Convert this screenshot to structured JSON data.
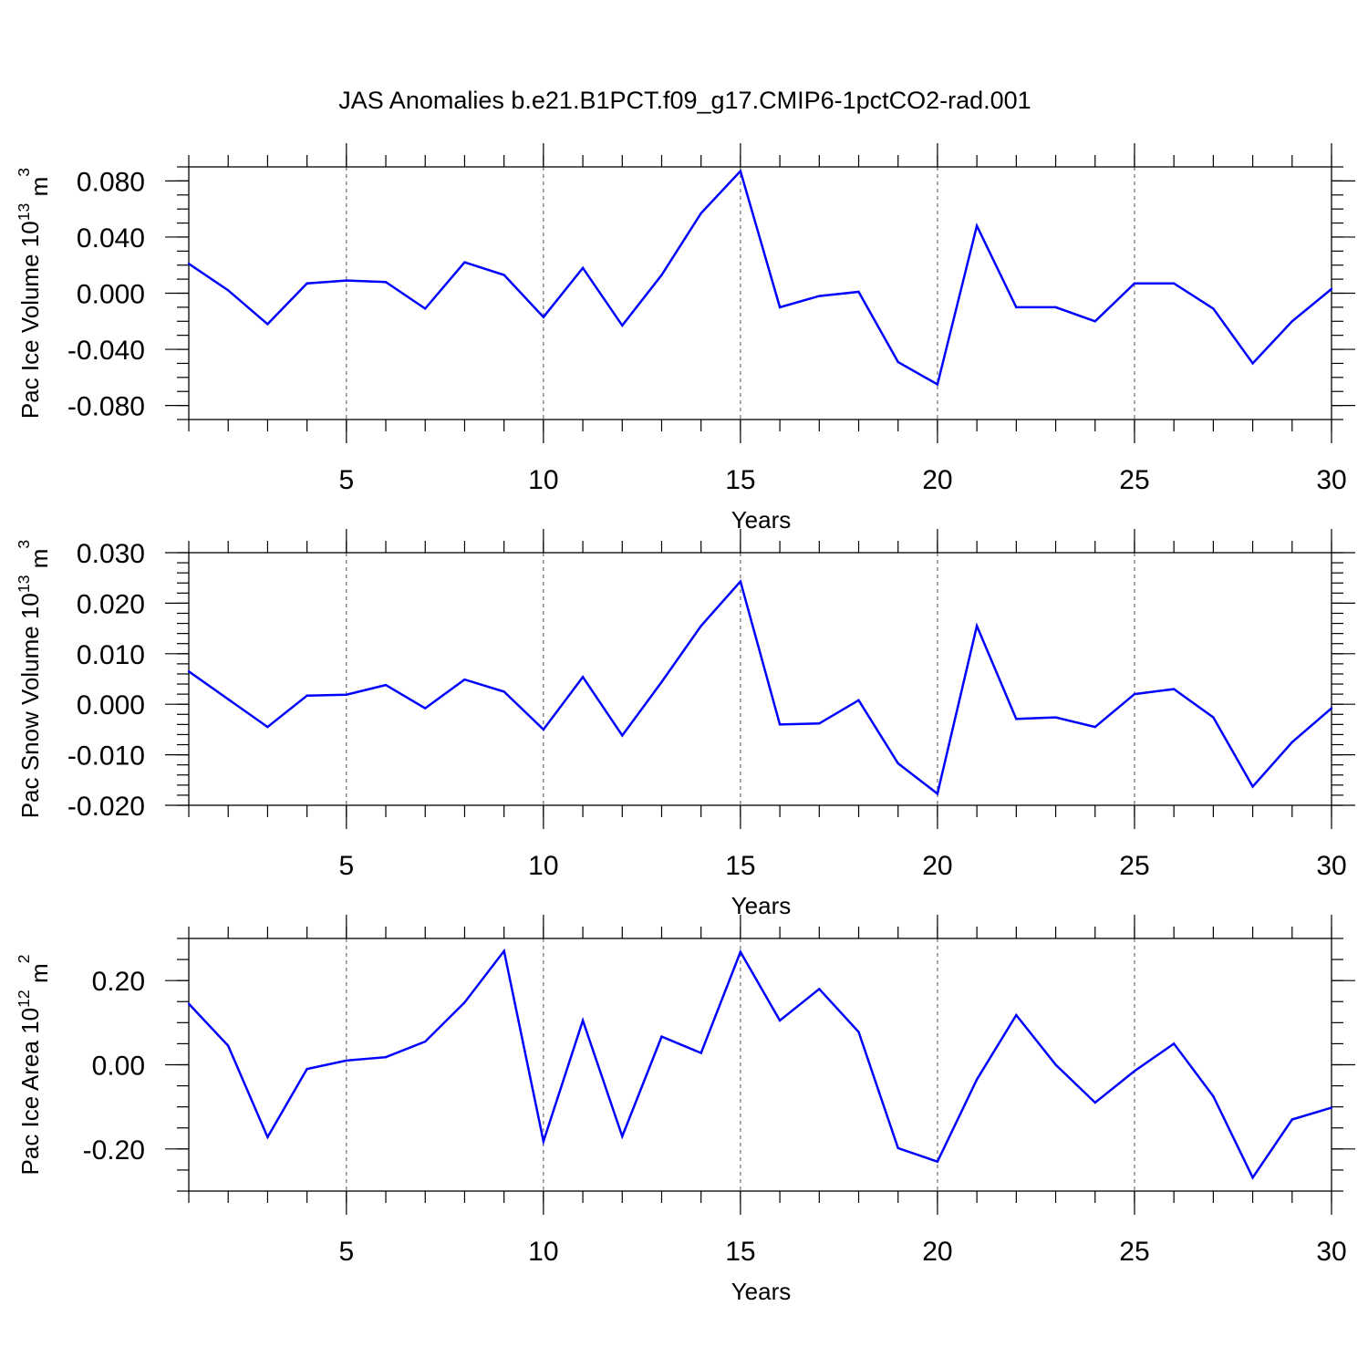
{
  "figure_title": "JAS Anomalies b.e21.B1PCT.f09_g17.CMIP6-1pctCO2-rad.001",
  "colors": {
    "line": "#0000ff",
    "frame": "#000000",
    "grid": "#555555"
  },
  "chart_data": [
    {
      "type": "line",
      "ylabel": "Pac Ice Volume 10",
      "ylabel_exp": "13",
      "ylabel_unit": " m",
      "ylabel_unit_exp": "3",
      "xlabel": "Years",
      "xlim": [
        1,
        30
      ],
      "ylim": [
        -0.09,
        0.09
      ],
      "x_ticks": [
        5,
        10,
        15,
        20,
        25,
        30
      ],
      "x_tick_labels": [
        "5",
        "10",
        "15",
        "20",
        "25",
        "30"
      ],
      "x_minor_ticks": [
        1,
        2,
        3,
        4,
        5,
        6,
        7,
        8,
        9,
        10,
        11,
        12,
        13,
        14,
        15,
        16,
        17,
        18,
        19,
        20,
        21,
        22,
        23,
        24,
        25,
        26,
        27,
        28,
        29,
        30
      ],
      "x_grid": [
        5,
        10,
        15,
        20,
        25
      ],
      "y_ticks": [
        -0.08,
        -0.04,
        0.0,
        0.04,
        0.08
      ],
      "y_tick_labels": [
        "-0.080",
        "-0.040",
        "0.000",
        "0.040",
        "0.080"
      ],
      "y_minor_ticks": [
        -0.09,
        -0.08,
        -0.07,
        -0.06,
        -0.05,
        -0.04,
        -0.03,
        -0.02,
        -0.01,
        0.0,
        0.01,
        0.02,
        0.03,
        0.04,
        0.05,
        0.06,
        0.07,
        0.08,
        0.09
      ],
      "x": [
        1,
        2,
        3,
        4,
        5,
        6,
        7,
        8,
        9,
        10,
        11,
        12,
        13,
        14,
        15,
        16,
        17,
        18,
        19,
        20,
        21,
        22,
        23,
        24,
        25,
        26,
        27,
        28,
        29,
        30
      ],
      "values": [
        0.021,
        0.002,
        -0.022,
        0.007,
        0.009,
        0.008,
        -0.011,
        0.022,
        0.013,
        -0.017,
        0.018,
        -0.023,
        0.013,
        0.057,
        0.087,
        -0.01,
        -0.002,
        0.001,
        -0.049,
        -0.065,
        0.048,
        -0.01,
        -0.01,
        -0.02,
        0.007,
        0.007,
        -0.011,
        -0.05,
        -0.02,
        0.003
      ]
    },
    {
      "type": "line",
      "ylabel": "Pac Snow Volume 10",
      "ylabel_exp": "13",
      "ylabel_unit": " m",
      "ylabel_unit_exp": "3",
      "xlabel": "Years",
      "xlim": [
        1,
        30
      ],
      "ylim": [
        -0.02,
        0.03
      ],
      "x_ticks": [
        5,
        10,
        15,
        20,
        25,
        30
      ],
      "x_tick_labels": [
        "5",
        "10",
        "15",
        "20",
        "25",
        "30"
      ],
      "x_minor_ticks": [
        1,
        2,
        3,
        4,
        5,
        6,
        7,
        8,
        9,
        10,
        11,
        12,
        13,
        14,
        15,
        16,
        17,
        18,
        19,
        20,
        21,
        22,
        23,
        24,
        25,
        26,
        27,
        28,
        29,
        30
      ],
      "x_grid": [
        5,
        10,
        15,
        20,
        25
      ],
      "y_ticks": [
        -0.02,
        -0.01,
        0.0,
        0.01,
        0.02,
        0.03
      ],
      "y_tick_labels": [
        "-0.020",
        "-0.010",
        "0.000",
        "0.010",
        "0.020",
        "0.030"
      ],
      "y_minor_ticks": [
        -0.02,
        -0.018,
        -0.016,
        -0.014,
        -0.012,
        -0.01,
        -0.008,
        -0.006,
        -0.004,
        -0.002,
        0.0,
        0.002,
        0.004,
        0.006,
        0.008,
        0.01,
        0.012,
        0.014,
        0.016,
        0.018,
        0.02,
        0.022,
        0.024,
        0.026,
        0.028,
        0.03
      ],
      "x": [
        1,
        2,
        3,
        4,
        5,
        6,
        7,
        8,
        9,
        10,
        11,
        12,
        13,
        14,
        15,
        16,
        17,
        18,
        19,
        20,
        21,
        22,
        23,
        24,
        25,
        26,
        27,
        28,
        29,
        30
      ],
      "values": [
        0.0065,
        0.001,
        -0.0045,
        0.0017,
        0.0019,
        0.0038,
        -0.0008,
        0.0049,
        0.0025,
        -0.005,
        0.0054,
        -0.0062,
        0.0044,
        0.0155,
        0.0243,
        -0.004,
        -0.0038,
        0.0008,
        -0.0117,
        -0.0177,
        0.0155,
        -0.0029,
        -0.0026,
        -0.0045,
        0.002,
        0.003,
        -0.0026,
        -0.0163,
        -0.0075,
        -0.0008
      ]
    },
    {
      "type": "line",
      "ylabel": "Pac Ice Area 10",
      "ylabel_exp": "12",
      "ylabel_unit": " m",
      "ylabel_unit_exp": "2",
      "xlabel": "Years",
      "xlim": [
        1,
        30
      ],
      "ylim": [
        -0.3,
        0.3
      ],
      "x_ticks": [
        5,
        10,
        15,
        20,
        25,
        30
      ],
      "x_tick_labels": [
        "5",
        "10",
        "15",
        "20",
        "25",
        "30"
      ],
      "x_minor_ticks": [
        1,
        2,
        3,
        4,
        5,
        6,
        7,
        8,
        9,
        10,
        11,
        12,
        13,
        14,
        15,
        16,
        17,
        18,
        19,
        20,
        21,
        22,
        23,
        24,
        25,
        26,
        27,
        28,
        29,
        30
      ],
      "x_grid": [
        5,
        10,
        15,
        20,
        25
      ],
      "y_ticks": [
        -0.2,
        0.0,
        0.2
      ],
      "y_tick_labels": [
        "-0.20",
        "0.00",
        "0.20"
      ],
      "y_minor_ticks": [
        -0.3,
        -0.25,
        -0.2,
        -0.15,
        -0.1,
        -0.05,
        0.0,
        0.05,
        0.1,
        0.15,
        0.2,
        0.25,
        0.3
      ],
      "x": [
        1,
        2,
        3,
        4,
        5,
        6,
        7,
        8,
        9,
        10,
        11,
        12,
        13,
        14,
        15,
        16,
        17,
        18,
        19,
        20,
        21,
        22,
        23,
        24,
        25,
        26,
        27,
        28,
        29,
        30
      ],
      "values": [
        0.145,
        0.045,
        -0.172,
        -0.01,
        0.01,
        0.018,
        0.055,
        0.148,
        0.27,
        -0.182,
        0.105,
        -0.17,
        0.067,
        0.028,
        0.268,
        0.105,
        0.18,
        0.078,
        -0.198,
        -0.23,
        -0.035,
        0.118,
        0.0,
        -0.09,
        -0.015,
        0.05,
        -0.075,
        -0.268,
        -0.13,
        -0.102
      ]
    }
  ]
}
